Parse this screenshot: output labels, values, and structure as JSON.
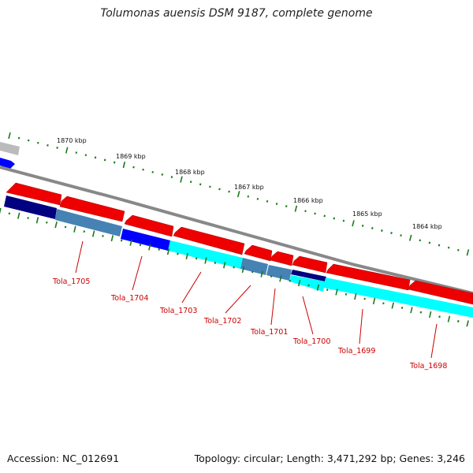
{
  "header": {
    "title": "Tolumonas auensis DSM 9187, complete genome"
  },
  "footer": {
    "accession": "Accession: NC_012691",
    "summary": "Topology: circular; Length: 3,471,292 bp; Genes: 3,246"
  },
  "scale": {
    "kbp_labels": [
      "1870 kbp",
      "1869 kbp",
      "1868 kbp",
      "1867 kbp",
      "1866 kbp",
      "1865 kbp",
      "1864 kbp"
    ]
  },
  "genes": {
    "labels": [
      "Tola_1705",
      "Tola_1704",
      "Tola_1703",
      "Tola_1702",
      "Tola_1701",
      "Tola_1700",
      "Tola_1699",
      "Tola_1698"
    ]
  },
  "colors": {
    "forward_gene": "#ee0000",
    "reverse_gene_cyan": "#00ffff",
    "reverse_gene_blue": "#0000ff",
    "reverse_gene_navy": "#000080",
    "reverse_gene_steel": "#4682b4",
    "backbone": "#888888",
    "scale_ticks": "#1a7a1a",
    "gene_label": "#cc0000"
  }
}
